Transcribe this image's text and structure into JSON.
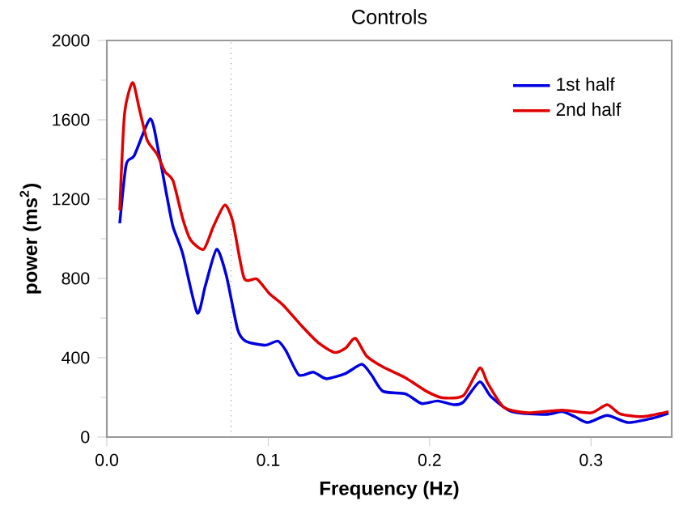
{
  "chart_data": {
    "type": "line",
    "title": "Controls",
    "xlabel": "Frequency (Hz)",
    "ylabel": "power (ms$^{2}$)",
    "xlim": [
      0,
      0.35
    ],
    "ylim": [
      0,
      2000
    ],
    "xticks": [
      {
        "value": 0,
        "label": "0.0"
      },
      0.1,
      0.2,
      0.3
    ],
    "yticks": [
      0,
      400,
      800,
      1200,
      1600,
      2000
    ],
    "legend": "top right",
    "grid": false,
    "marker": "none",
    "line_style": "solid",
    "ref_lines": [
      {
        "axis": "x",
        "value": 0.077,
        "line_style": "dotted",
        "color": "#808080"
      }
    ],
    "series": [
      {
        "name": "1st half",
        "color": "#0000e0",
        "x": [
          0.008,
          0.012,
          0.017,
          0.027,
          0.032,
          0.037,
          0.041,
          0.047,
          0.056,
          0.061,
          0.068,
          0.074,
          0.081,
          0.086,
          0.098,
          0.106,
          0.111,
          0.119,
          0.128,
          0.136,
          0.148,
          0.158,
          0.164,
          0.171,
          0.185,
          0.195,
          0.205,
          0.215,
          0.221,
          0.231,
          0.238,
          0.251,
          0.272,
          0.282,
          0.29,
          0.298,
          0.31,
          0.323,
          0.338,
          0.348
        ],
        "values": [
          1078,
          1374,
          1420,
          1605,
          1442,
          1224,
          1061,
          925,
          626,
          762,
          947,
          816,
          544,
          484,
          463,
          484,
          435,
          313,
          327,
          294,
          321,
          367,
          313,
          231,
          218,
          169,
          182,
          163,
          177,
          278,
          204,
          128,
          114,
          128,
          103,
          73,
          109,
          73,
          95,
          120
        ]
      },
      {
        "name": "2nd half",
        "color": "#e00000",
        "x": [
          0.008,
          0.011,
          0.016,
          0.02,
          0.025,
          0.031,
          0.036,
          0.041,
          0.047,
          0.052,
          0.06,
          0.066,
          0.073,
          0.078,
          0.085,
          0.093,
          0.101,
          0.109,
          0.121,
          0.131,
          0.141,
          0.148,
          0.154,
          0.161,
          0.171,
          0.185,
          0.198,
          0.208,
          0.221,
          0.231,
          0.236,
          0.246,
          0.261,
          0.282,
          0.3,
          0.31,
          0.318,
          0.332,
          0.348
        ],
        "values": [
          1143,
          1633,
          1788,
          1660,
          1497,
          1429,
          1339,
          1293,
          1102,
          993,
          947,
          1061,
          1170,
          1088,
          803,
          797,
          721,
          667,
          558,
          476,
          427,
          449,
          498,
          408,
          354,
          299,
          231,
          198,
          210,
          348,
          272,
          150,
          122,
          136,
          122,
          163,
          117,
          103,
          128
        ]
      }
    ]
  }
}
